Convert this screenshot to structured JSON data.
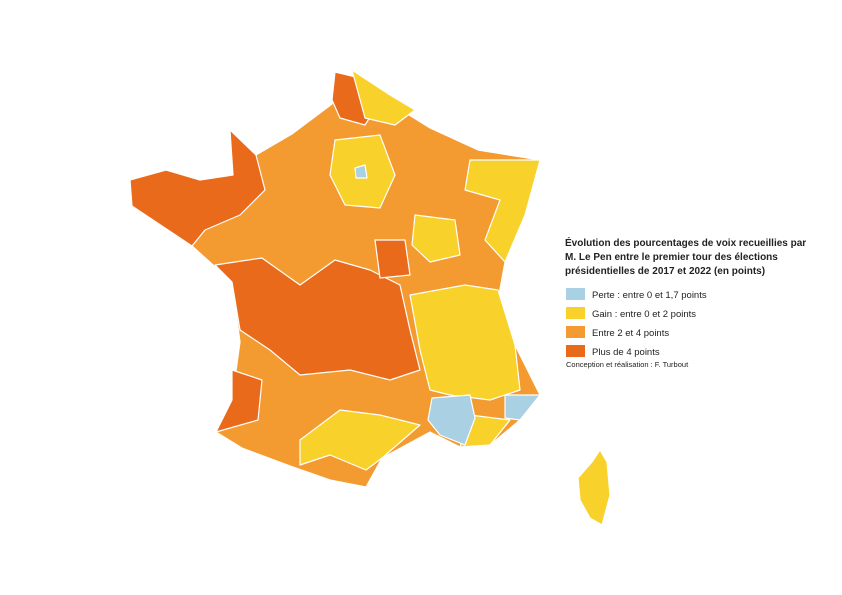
{
  "legend": {
    "title_lines": [
      "Évolution des pourcentages de voix recueillies par",
      "M. Le Pen entre le premier tour des élections",
      "présidentielles de 2017 et 2022 (en points)"
    ],
    "items": [
      {
        "label": "Perte : entre 0 et 1,7 points",
        "color": "#a9d0e3"
      },
      {
        "label": "Gain : entre 0 et 2 points",
        "color": "#f8d12a"
      },
      {
        "label": "Entre 2 et 4 points",
        "color": "#f39b30"
      },
      {
        "label": "Plus de 4 points",
        "color": "#ea6a1c"
      }
    ],
    "credit": "Conception et réalisation : F. Turbout"
  }
}
